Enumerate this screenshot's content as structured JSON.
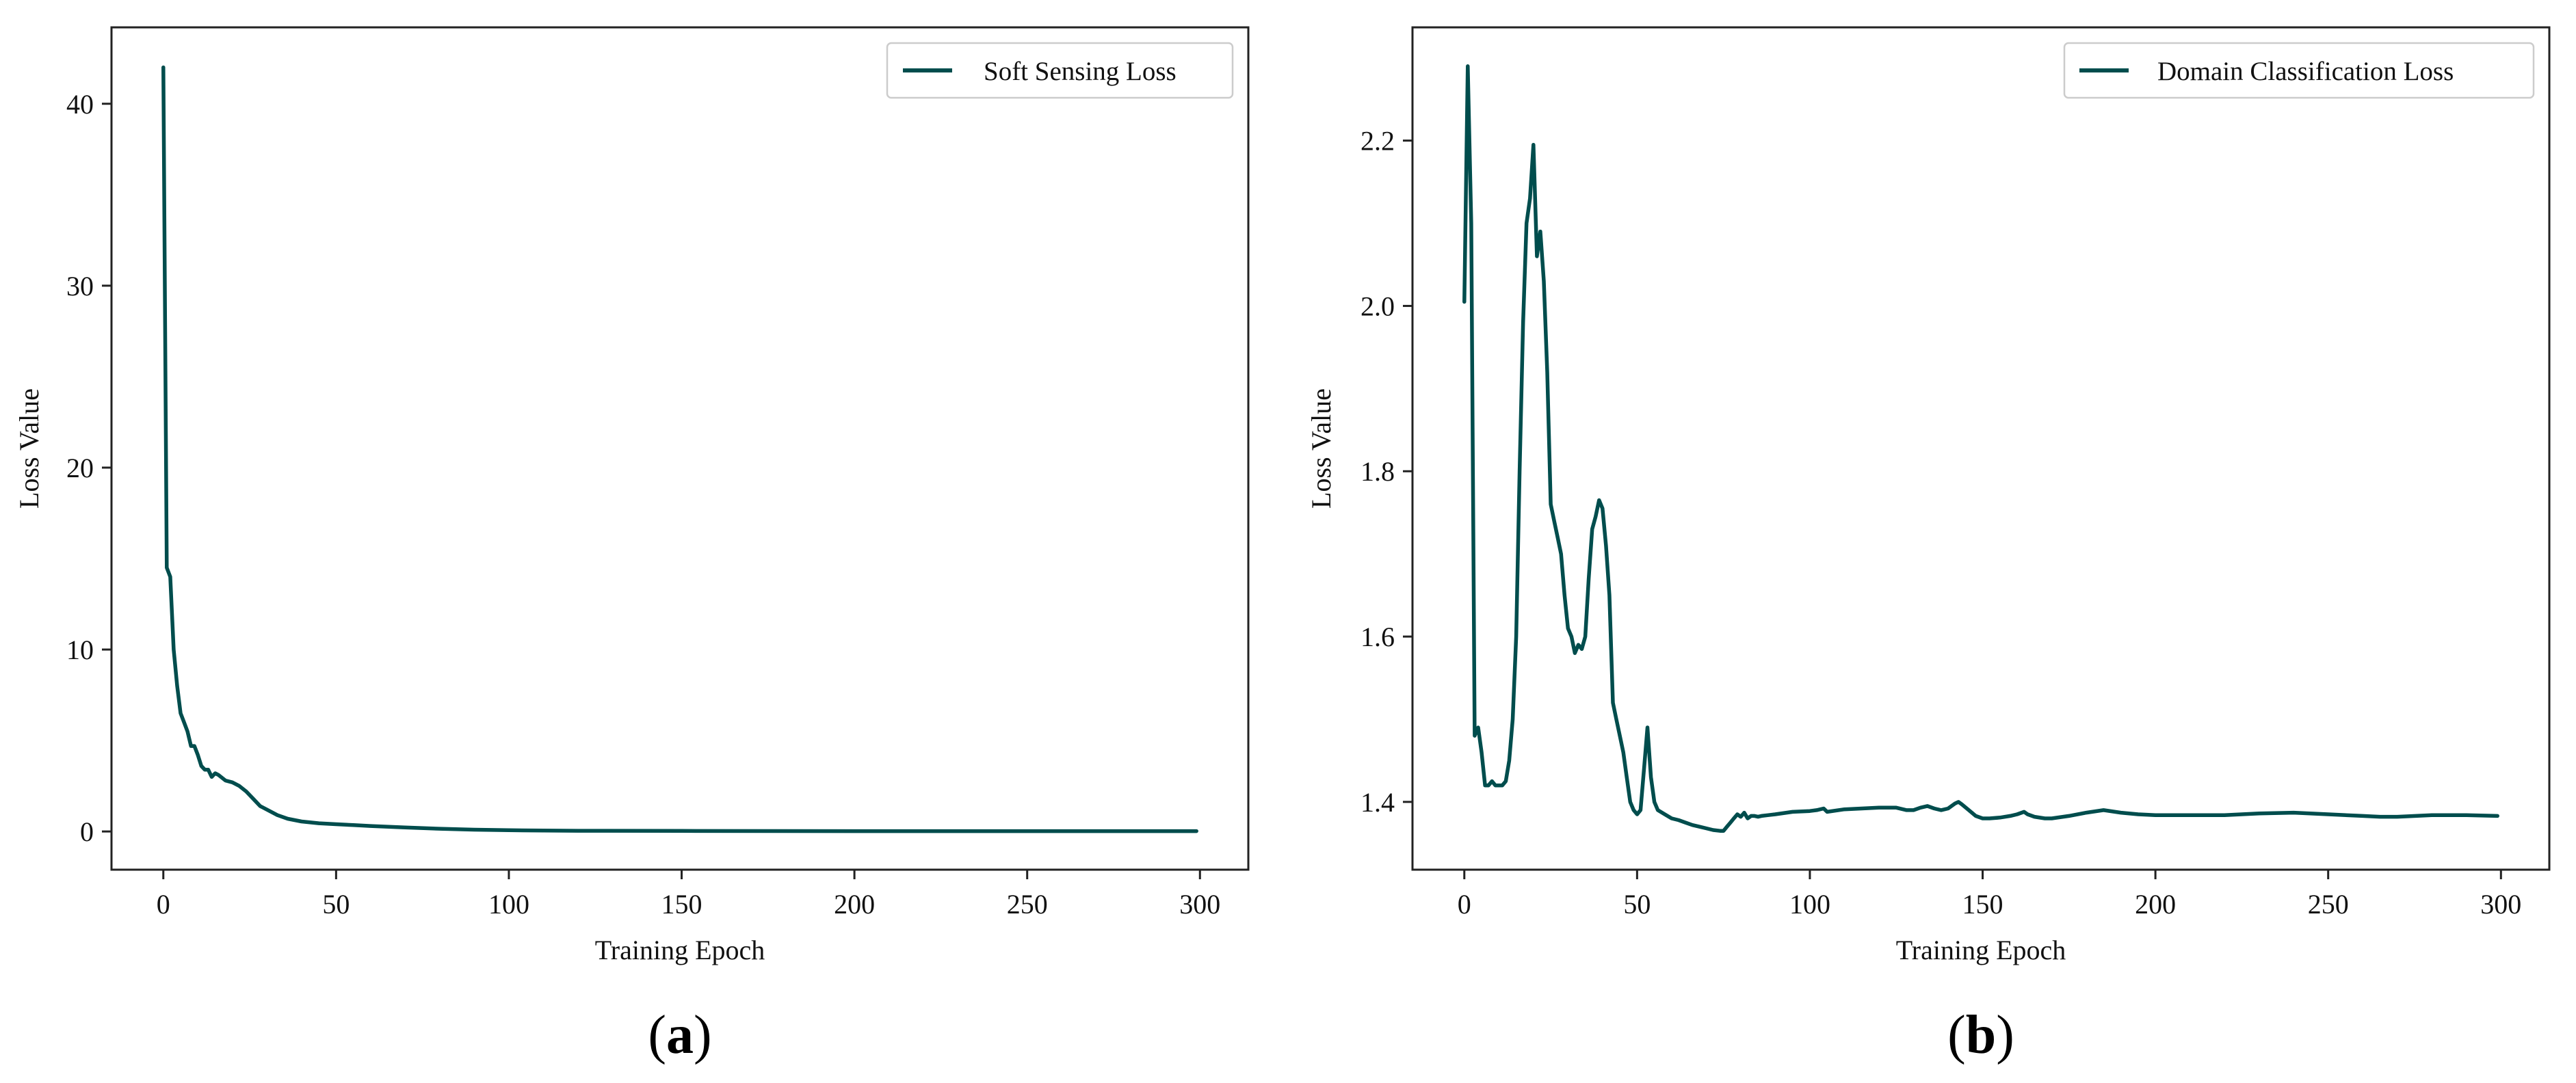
{
  "chart_data": [
    {
      "type": "line",
      "panel_label": "a",
      "xlabel": "Training Epoch",
      "ylabel": "Loss Value",
      "xlim": [
        -15,
        314
      ],
      "ylim": [
        -2.1,
        44.2
      ],
      "xticks": [
        0,
        50,
        100,
        150,
        200,
        250,
        300
      ],
      "yticks": [
        0,
        10,
        20,
        30,
        40
      ],
      "legend_position": "top-right",
      "grid": false,
      "line_color": "#004d4d",
      "series": [
        {
          "name": "Soft Sensing Loss",
          "x": [
            0,
            1,
            2,
            3,
            4,
            5,
            6,
            7,
            8,
            9,
            10,
            11,
            12,
            13,
            14,
            15,
            16,
            18,
            20,
            22,
            24,
            26,
            28,
            30,
            33,
            36,
            40,
            45,
            50,
            55,
            60,
            70,
            80,
            90,
            100,
            110,
            120,
            150,
            200,
            250,
            299
          ],
          "values": [
            42.0,
            14.5,
            14.0,
            10.0,
            8.0,
            6.5,
            6.0,
            5.5,
            4.7,
            4.7,
            4.2,
            3.6,
            3.4,
            3.4,
            3.0,
            3.2,
            3.1,
            2.8,
            2.7,
            2.5,
            2.2,
            1.8,
            1.4,
            1.2,
            0.9,
            0.7,
            0.55,
            0.45,
            0.4,
            0.35,
            0.3,
            0.22,
            0.15,
            0.1,
            0.07,
            0.05,
            0.04,
            0.03,
            0.02,
            0.02,
            0.02
          ]
        }
      ]
    },
    {
      "type": "line",
      "panel_label": "b",
      "xlabel": "Training Epoch",
      "ylabel": "Loss Value",
      "xlim": [
        -15,
        314
      ],
      "ylim": [
        1.318,
        2.337
      ],
      "xticks": [
        0,
        50,
        100,
        150,
        200,
        250,
        300
      ],
      "yticks": [
        1.4,
        1.6,
        1.8,
        2.0,
        2.2
      ],
      "legend_position": "top-right",
      "grid": false,
      "line_color": "#004d4d",
      "series": [
        {
          "name": "Domain Classification Loss",
          "x": [
            0,
            1,
            2,
            3,
            4,
            5,
            6,
            7,
            8,
            9,
            10,
            11,
            12,
            13,
            14,
            15,
            16,
            17,
            18,
            19,
            20,
            21,
            22,
            23,
            24,
            25,
            26,
            27,
            28,
            29,
            30,
            31,
            32,
            33,
            34,
            35,
            36,
            37,
            38,
            39,
            40,
            41,
            42,
            43,
            44,
            45,
            46,
            47,
            48,
            49,
            50,
            51,
            52,
            53,
            54,
            55,
            56,
            58,
            60,
            62,
            64,
            66,
            68,
            70,
            72,
            74,
            75,
            76,
            77,
            78,
            79,
            80,
            81,
            82,
            83,
            84,
            85,
            86,
            88,
            90,
            95,
            100,
            102,
            104,
            105,
            110,
            120,
            125,
            128,
            130,
            132,
            134,
            136,
            138,
            140,
            142,
            143,
            144,
            146,
            148,
            150,
            152,
            155,
            158,
            160,
            162,
            163,
            165,
            168,
            170,
            175,
            180,
            185,
            190,
            195,
            200,
            210,
            220,
            230,
            240,
            250,
            260,
            265,
            270,
            280,
            290,
            299
          ],
          "values": [
            2.005,
            2.29,
            2.1,
            1.48,
            1.49,
            1.46,
            1.42,
            1.42,
            1.425,
            1.42,
            1.42,
            1.42,
            1.425,
            1.45,
            1.5,
            1.6,
            1.8,
            1.98,
            2.1,
            2.13,
            2.195,
            2.06,
            2.09,
            2.03,
            1.92,
            1.76,
            1.74,
            1.72,
            1.7,
            1.65,
            1.61,
            1.6,
            1.58,
            1.59,
            1.585,
            1.6,
            1.67,
            1.73,
            1.745,
            1.765,
            1.755,
            1.71,
            1.65,
            1.52,
            1.5,
            1.48,
            1.46,
            1.43,
            1.4,
            1.39,
            1.385,
            1.39,
            1.44,
            1.49,
            1.43,
            1.4,
            1.39,
            1.385,
            1.38,
            1.378,
            1.375,
            1.372,
            1.37,
            1.368,
            1.366,
            1.365,
            1.365,
            1.37,
            1.375,
            1.38,
            1.385,
            1.382,
            1.387,
            1.38,
            1.383,
            1.383,
            1.382,
            1.383,
            1.384,
            1.385,
            1.388,
            1.389,
            1.39,
            1.392,
            1.388,
            1.391,
            1.393,
            1.393,
            1.39,
            1.39,
            1.393,
            1.395,
            1.392,
            1.39,
            1.392,
            1.398,
            1.4,
            1.397,
            1.39,
            1.383,
            1.38,
            1.38,
            1.381,
            1.383,
            1.385,
            1.388,
            1.385,
            1.382,
            1.38,
            1.38,
            1.383,
            1.387,
            1.39,
            1.387,
            1.385,
            1.384,
            1.384,
            1.384,
            1.386,
            1.387,
            1.385,
            1.383,
            1.382,
            1.382,
            1.384,
            1.384,
            1.383
          ]
        }
      ]
    }
  ]
}
